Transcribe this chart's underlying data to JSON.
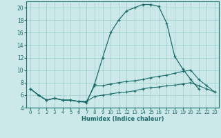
{
  "xlabel": "Humidex (Indice chaleur)",
  "background_color": "#cce8e8",
  "grid_color": "#99cccc",
  "line_color": "#1a6b6b",
  "xlim": [
    -0.5,
    23.5
  ],
  "ylim": [
    4,
    21
  ],
  "xticks": [
    0,
    1,
    2,
    3,
    4,
    5,
    6,
    7,
    8,
    9,
    10,
    11,
    12,
    13,
    14,
    15,
    16,
    17,
    18,
    19,
    20,
    21,
    22,
    23
  ],
  "yticks": [
    4,
    6,
    8,
    10,
    12,
    14,
    16,
    18,
    20
  ],
  "curve1_x": [
    0,
    1,
    2,
    3,
    4,
    5,
    6,
    7,
    8,
    9,
    10,
    11,
    12,
    13,
    14,
    15,
    16,
    17,
    18,
    19,
    20,
    21
  ],
  "curve1_y": [
    7.0,
    6.0,
    5.2,
    5.5,
    5.2,
    5.2,
    5.0,
    4.8,
    7.8,
    12.0,
    16.0,
    18.0,
    19.5,
    20.0,
    20.5,
    20.5,
    20.2,
    17.5,
    12.2,
    10.2,
    8.5,
    7.0
  ],
  "curve2_x": [
    0,
    1,
    2,
    3,
    4,
    5,
    6,
    7,
    8,
    9,
    10,
    11,
    12,
    13,
    14,
    15,
    16,
    17,
    18,
    19,
    20,
    21,
    22,
    23
  ],
  "curve2_y": [
    7.0,
    6.0,
    5.2,
    5.5,
    5.2,
    5.2,
    5.0,
    5.0,
    7.5,
    7.5,
    7.8,
    8.0,
    8.2,
    8.3,
    8.5,
    8.8,
    9.0,
    9.2,
    9.5,
    9.8,
    10.0,
    8.5,
    7.5,
    6.5
  ],
  "curve3_x": [
    0,
    1,
    2,
    3,
    4,
    5,
    6,
    7,
    8,
    9,
    10,
    11,
    12,
    13,
    14,
    15,
    16,
    17,
    18,
    19,
    20,
    21,
    22,
    23
  ],
  "curve3_y": [
    7.0,
    6.0,
    5.2,
    5.5,
    5.2,
    5.2,
    5.0,
    5.0,
    5.8,
    6.0,
    6.2,
    6.4,
    6.5,
    6.7,
    7.0,
    7.2,
    7.3,
    7.5,
    7.6,
    7.8,
    8.0,
    7.5,
    7.0,
    6.5
  ]
}
